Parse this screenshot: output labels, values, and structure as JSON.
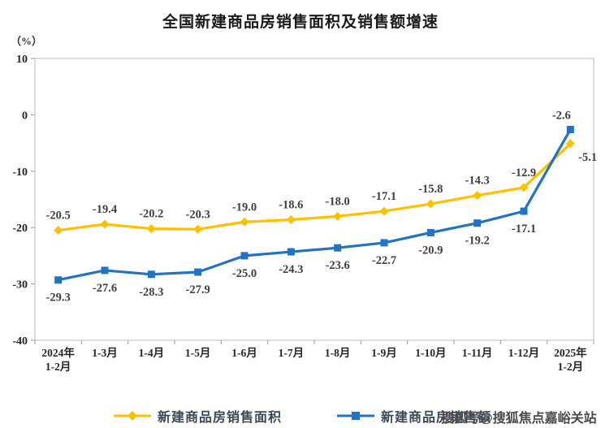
{
  "title": "全国新建商品房销售面积及销售额增速",
  "y_axis_unit": "（%）",
  "watermark": "搜狐号@搜狐焦点嘉峪关站",
  "legend": [
    {
      "label": "新建商品房销售面积",
      "color": "#FFC000",
      "marker": "diamond"
    },
    {
      "label": "新建商品房销售额",
      "color": "#2273C3",
      "marker": "square"
    }
  ],
  "chart_data": {
    "type": "line",
    "title": "全国新建商品房销售面积及销售额增速",
    "xlabel": "",
    "ylabel": "（%）",
    "categories": [
      "2024年\n1-2月",
      "1-3月",
      "1-4月",
      "1-5月",
      "1-6月",
      "1-7月",
      "1-8月",
      "1-9月",
      "1-10月",
      "1-11月",
      "1-12月",
      "2025年\n1-2月"
    ],
    "series": [
      {
        "name": "新建商品房销售面积",
        "color": "#FFC000",
        "marker": "diamond",
        "values": [
          -20.5,
          -19.4,
          -20.2,
          -20.3,
          -19.0,
          -18.6,
          -18.0,
          -17.1,
          -15.8,
          -14.3,
          -12.9,
          -5.1
        ]
      },
      {
        "name": "新建商品房销售额",
        "color": "#2273C3",
        "marker": "square",
        "values": [
          -29.3,
          -27.6,
          -28.3,
          -27.9,
          -25.0,
          -24.3,
          -23.6,
          -22.7,
          -20.9,
          -19.2,
          -17.1,
          -2.6
        ]
      }
    ],
    "ylim": [
      -40,
      10
    ],
    "yticks": [
      10,
      0,
      -10,
      -20,
      -30,
      -40
    ],
    "grid": false,
    "legend_position": "bottom",
    "data_labels": true
  }
}
